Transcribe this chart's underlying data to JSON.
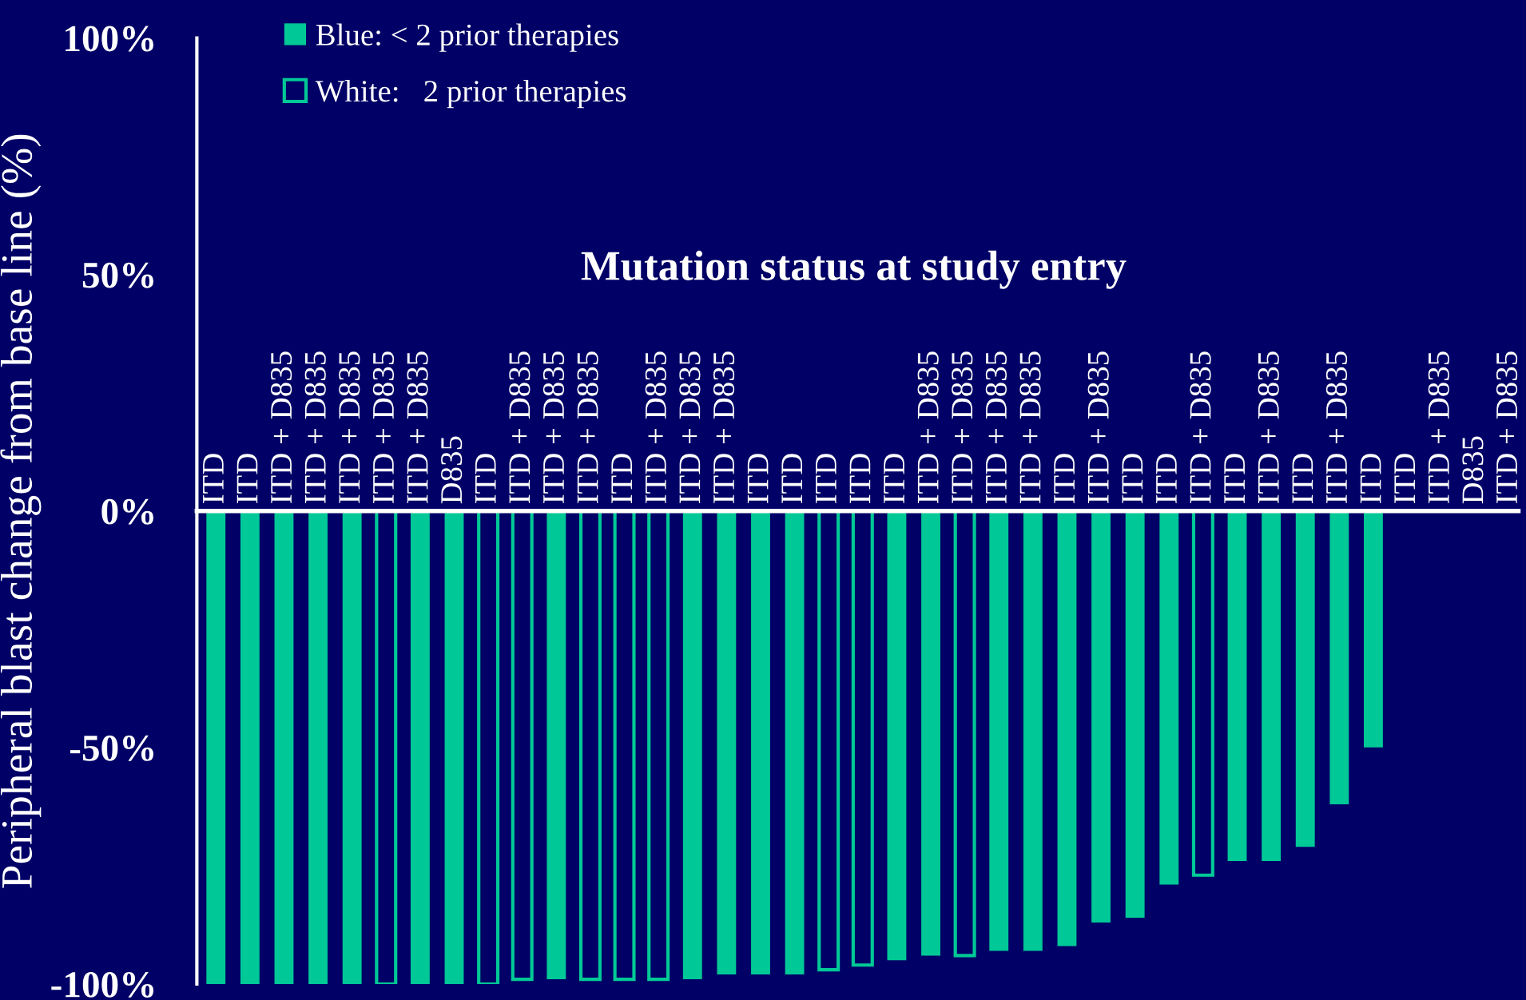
{
  "chart_data": {
    "type": "bar",
    "title": "Mutation status at study entry",
    "ylabel": "Peripheral blast change from base line (%)",
    "categories": [
      "ITD",
      "ITD",
      "ITD + D835",
      "ITD + D835",
      "ITD + D835",
      "ITD + D835",
      "ITD + D835",
      "D835",
      "ITD",
      "ITD + D835",
      "ITD + D835",
      "ITD + D835",
      "ITD",
      "ITD + D835",
      "ITD + D835",
      "ITD + D835",
      "ITD",
      "ITD",
      "ITD",
      "ITD",
      "ITD",
      "ITD + D835",
      "ITD + D835",
      "ITD + D835",
      "ITD + D835",
      "ITD",
      "ITD + D835",
      "ITD",
      "ITD",
      "ITD + D835",
      "ITD",
      "ITD + D835",
      "ITD",
      "ITD + D835",
      "ITD",
      "ITD",
      "ITD + D835",
      "D835",
      "ITD + D835"
    ],
    "series": [
      {
        "name": "Blue: < 2 prior therapies",
        "color": "#00c896",
        "values": [
          -100,
          -100,
          -100,
          -100,
          -100,
          null,
          -100,
          -100,
          null,
          null,
          -99,
          null,
          null,
          null,
          -99,
          -98,
          -98,
          -98,
          null,
          null,
          -95,
          -94,
          null,
          -93,
          -93,
          -92,
          -87,
          -86,
          -79,
          null,
          -74,
          -74,
          -71,
          -62,
          -50,
          null,
          null,
          null,
          null
        ]
      },
      {
        "name": "White:   2 prior therapies",
        "color": "#00c896",
        "values": [
          null,
          null,
          null,
          null,
          null,
          -100,
          null,
          null,
          -100,
          -99,
          null,
          -99,
          -99,
          -99,
          null,
          null,
          null,
          null,
          -97,
          -96,
          null,
          null,
          -94,
          null,
          null,
          null,
          null,
          null,
          null,
          -77,
          null,
          null,
          null,
          null,
          null,
          null,
          null,
          null,
          null
        ]
      }
    ],
    "ylim": [
      -100,
      100
    ],
    "yticks": [
      {
        "value": -100,
        "label": "-100%"
      },
      {
        "value": -50,
        "label": "-50%"
      },
      {
        "value": 0,
        "label": "0%"
      },
      {
        "value": 50,
        "label": "50%"
      },
      {
        "value": 100,
        "label": "100%"
      }
    ],
    "grid": false,
    "legend": "top left"
  }
}
